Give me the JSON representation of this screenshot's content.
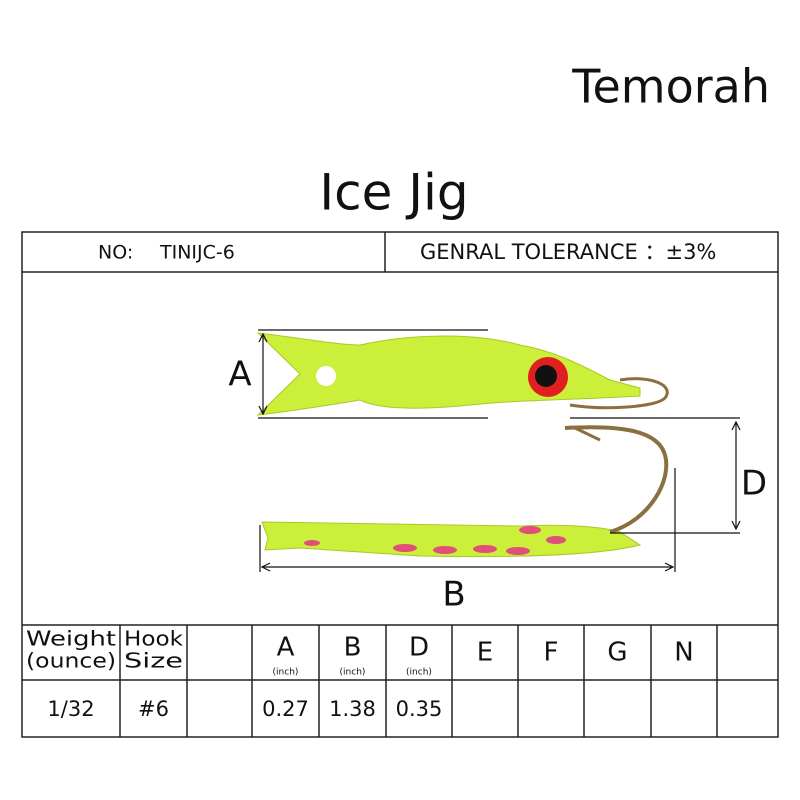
{
  "brand": "Temorah",
  "title": "Ice Jig",
  "header": {
    "no_label": "NO:",
    "no_value": "TINIJC-6",
    "tolerance": "GENRAL TOLERANCE ：±3%"
  },
  "dimensions": {
    "a": "A",
    "b": "B",
    "d": "D"
  },
  "table": {
    "headers": [
      {
        "lines": [
          "Weight",
          "(ounce)"
        ]
      },
      {
        "lines": [
          "Hook",
          "Size"
        ]
      },
      null,
      {
        "letter": "A",
        "unit": "(inch)"
      },
      {
        "letter": "B",
        "unit": "(inch)"
      },
      {
        "letter": "D",
        "unit": "(inch)"
      },
      {
        "letter": "E"
      },
      {
        "letter": "F"
      },
      {
        "letter": "G"
      },
      {
        "letter": "N"
      },
      null
    ],
    "rows": [
      [
        "1/32",
        "#6",
        null,
        "0.27",
        "1.38",
        "0.35",
        null,
        null,
        null,
        null,
        null
      ]
    ]
  }
}
